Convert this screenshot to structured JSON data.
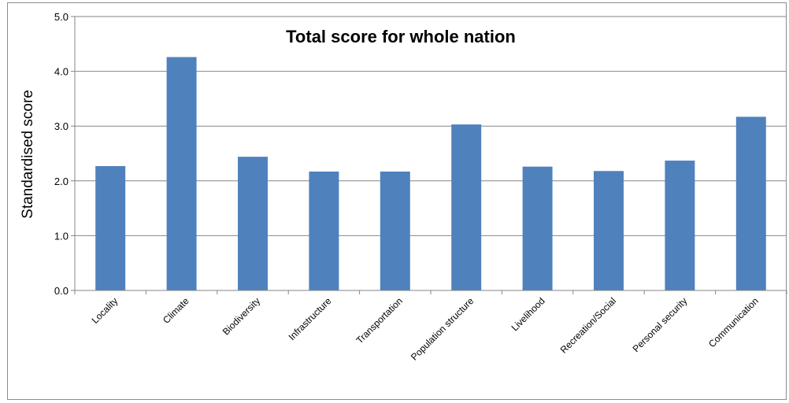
{
  "chart_data": {
    "type": "bar",
    "title": "Total score for whole nation",
    "xlabel": "",
    "ylabel": "Standardised score",
    "ylim": [
      0,
      5
    ],
    "yticks": [
      "0.0",
      "1.0",
      "2.0",
      "3.0",
      "4.0",
      "5.0"
    ],
    "grid": true,
    "categories": [
      "Locality",
      "Climate",
      "Biodiversity",
      "Infrastructure",
      "Transportation",
      "Population structure",
      "Livelihood",
      "Recreation/Social",
      "Personal security",
      "Communication"
    ],
    "values": [
      2.27,
      4.26,
      2.44,
      2.17,
      2.17,
      3.03,
      2.26,
      2.18,
      2.37,
      3.17
    ],
    "bar_color": "#4f81bd",
    "grid_color": "#868686",
    "axis_color": "#868686"
  }
}
